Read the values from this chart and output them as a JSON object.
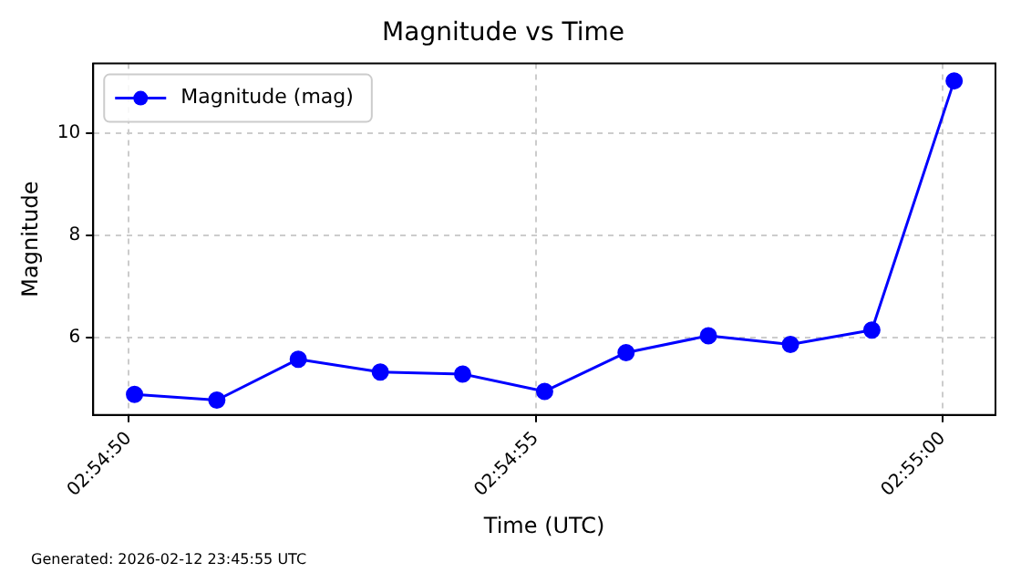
{
  "chart_data": {
    "type": "line",
    "title": "Magnitude vs Time",
    "xlabel": "Time (UTC)",
    "ylabel": "Magnitude",
    "x": [
      2.913908,
      2.914189,
      2.914467,
      2.914747,
      2.915028,
      2.915308,
      2.915586,
      2.915867,
      2.916147,
      2.916425,
      2.916706
    ],
    "series": [
      {
        "name": "Magnitude (mag)",
        "color": "#0000ff",
        "values": [
          4.89,
          4.78,
          5.58,
          5.33,
          5.29,
          4.95,
          5.71,
          6.04,
          5.87,
          6.15,
          11.03
        ]
      }
    ],
    "xlim": [
      2.913767,
      2.916847
    ],
    "xticks": [
      {
        "value": 2.913889,
        "label": "02:54:50"
      },
      {
        "value": 2.915278,
        "label": "02:54:55"
      },
      {
        "value": 2.916667,
        "label": "02:55:00"
      }
    ],
    "ylim": [
      4.49,
      11.37
    ],
    "yticks": [
      6,
      8,
      10
    ],
    "grid": true,
    "legend": "top left",
    "marker": "circle",
    "line_style": "solid",
    "annotations": [
      "Generated: 2026-02-12 23:45:55 UTC"
    ]
  }
}
